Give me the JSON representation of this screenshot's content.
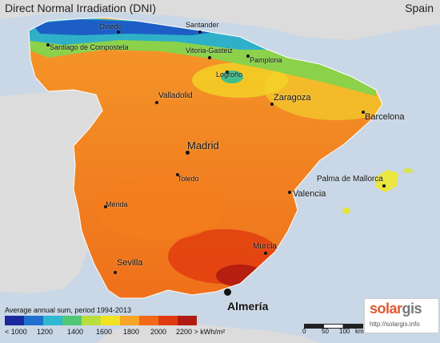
{
  "title": "Direct Normal Irradiation (DNI)",
  "country": "Spain",
  "legend": {
    "title": "Average annual sum, period 1994-2013",
    "ticks": [
      "< 1000",
      "1200",
      "1400",
      "1600",
      "1800",
      "2000",
      "2200 > kWh/m²"
    ],
    "colors": [
      "#1a2a9e",
      "#1f6fd0",
      "#2fb8d2",
      "#52c777",
      "#b9de3c",
      "#f2e224",
      "#f6a524",
      "#f26a17",
      "#e23a10",
      "#b01a10"
    ]
  },
  "cities": [
    {
      "name": "Oviedo",
      "size": "small"
    },
    {
      "name": "Santander",
      "size": "small"
    },
    {
      "name": "Santiago de Compostela",
      "size": "small"
    },
    {
      "name": "Vitoria-Gasteiz",
      "size": "small"
    },
    {
      "name": "Pamplona",
      "size": "small"
    },
    {
      "name": "Logroño",
      "size": "small"
    },
    {
      "name": "Valladolid",
      "size": "small"
    },
    {
      "name": "Zaragoza",
      "size": "medium"
    },
    {
      "name": "Barcelona",
      "size": "medium"
    },
    {
      "name": "Madrid",
      "size": "large"
    },
    {
      "name": "Toledo",
      "size": "small"
    },
    {
      "name": "Palma de Mallorca",
      "size": "medium"
    },
    {
      "name": "Valencia",
      "size": "medium"
    },
    {
      "name": "Mérida",
      "size": "small"
    },
    {
      "name": "Murcia",
      "size": "small"
    },
    {
      "name": "Sevilla",
      "size": "medium"
    },
    {
      "name": "Almería",
      "size": "highlight"
    }
  ],
  "logo": {
    "solar": "solar",
    "gis": "gis",
    "url": "http://solargis.info"
  },
  "scale": {
    "labels": [
      "0",
      "50",
      "100",
      "km"
    ]
  }
}
